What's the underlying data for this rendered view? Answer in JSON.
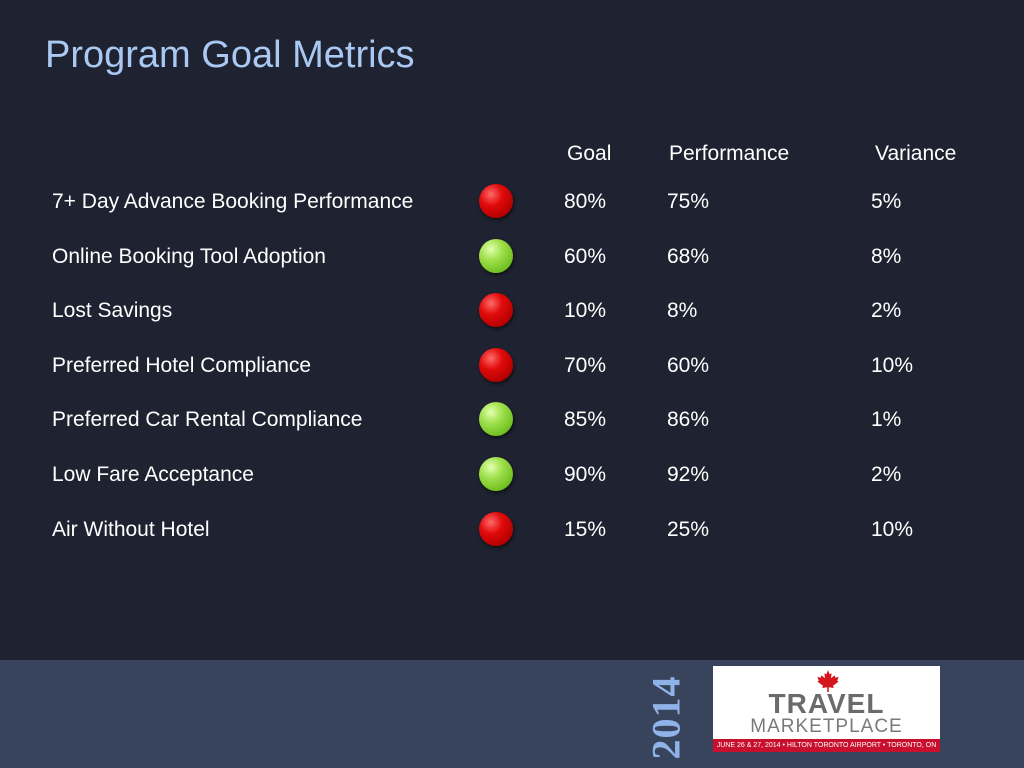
{
  "title": "Program Goal Metrics",
  "headers": {
    "goal": "Goal",
    "performance": "Performance",
    "variance": "Variance"
  },
  "rows": [
    {
      "metric": "7+ Day Advance Booking Performance",
      "status": "red",
      "goal": "80%",
      "performance": "75%",
      "variance": "5%"
    },
    {
      "metric": "Online Booking Tool Adoption",
      "status": "green",
      "goal": "60%",
      "performance": "68%",
      "variance": "8%"
    },
    {
      "metric": "Lost Savings",
      "status": "red",
      "goal": "10%",
      "performance": "8%",
      "variance": "2%"
    },
    {
      "metric": "Preferred Hotel Compliance",
      "status": "red",
      "goal": "70%",
      "performance": "60%",
      "variance": "10%"
    },
    {
      "metric": "Preferred Car Rental Compliance",
      "status": "green",
      "goal": "85%",
      "performance": "86%",
      "variance": "1%"
    },
    {
      "metric": "Low Fare Acceptance",
      "status": "green",
      "goal": "90%",
      "performance": "92%",
      "variance": "2%"
    },
    {
      "metric": "Air Without Hotel",
      "status": "red",
      "goal": "15%",
      "performance": "25%",
      "variance": "10%"
    }
  ],
  "footer": {
    "year": "2014",
    "logo_line1": "TRAVEL",
    "logo_line2": "MARKETPLACE",
    "logo_strip": "JUNE 26 & 27, 2014 • HILTON TORONTO AIRPORT • TORONTO, ON"
  },
  "colors": {
    "background": "#1f2230",
    "footer": "#38445b",
    "title": "#a9c8f2",
    "status_red": "#d40000",
    "status_green": "#8fd43a"
  }
}
